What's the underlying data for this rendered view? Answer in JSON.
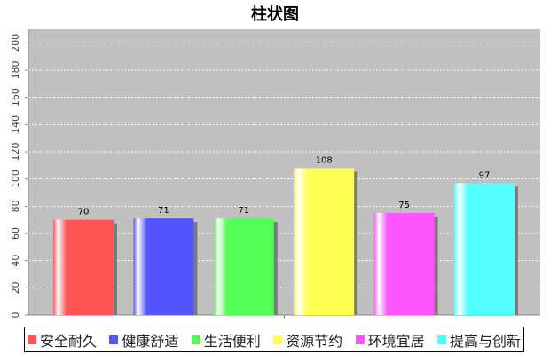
{
  "chart_data": {
    "type": "bar",
    "title": "柱状图",
    "categories": [
      "安全耐久",
      "健康舒适",
      "生活便利",
      "资源节约",
      "环境宜居",
      "提高与创新"
    ],
    "values": [
      70,
      71,
      71,
      108,
      75,
      97
    ],
    "colors": [
      "#ff5555",
      "#5555ff",
      "#55ff55",
      "#ffff55",
      "#ff55ff",
      "#55ffff"
    ],
    "ylim": [
      0,
      210
    ],
    "yticks": [
      0,
      20,
      40,
      60,
      80,
      100,
      120,
      140,
      160,
      180,
      200
    ],
    "plot_background": "#c0c0c0",
    "grid": true,
    "legend_position": "bottom"
  }
}
